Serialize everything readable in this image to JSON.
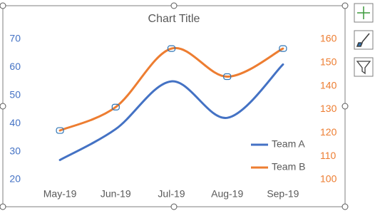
{
  "chart_data": {
    "type": "line",
    "title": "Chart Title",
    "categories": [
      "May-19",
      "Jun-19",
      "Jul-19",
      "Aug-19",
      "Sep-19"
    ],
    "series": [
      {
        "name": "Team A",
        "color": "#4472c4",
        "values": [
          27,
          38,
          55,
          42,
          61
        ]
      },
      {
        "name": "Team B",
        "color": "#ed7d31",
        "values": [
          121,
          131,
          156,
          144,
          156
        ],
        "axis": "y2"
      }
    ],
    "ylim": [
      20,
      70
    ],
    "yticks": [
      20,
      30,
      40,
      50,
      60,
      70
    ],
    "y2lim": [
      100,
      160
    ],
    "y2ticks": [
      100,
      110,
      120,
      130,
      140,
      150,
      160
    ],
    "smooth": true,
    "legend": "bottom-right",
    "grid": false
  }
}
